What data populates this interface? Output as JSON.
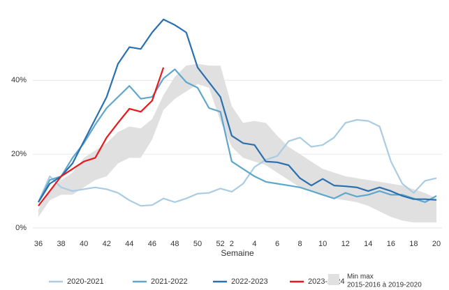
{
  "chart_data": {
    "type": "line",
    "x_label": "Semaine",
    "categories": [
      "36",
      null,
      "38",
      null,
      "40",
      null,
      "42",
      null,
      "44",
      null,
      "46",
      null,
      "48",
      null,
      "50",
      null,
      "52",
      "2",
      null,
      "4",
      null,
      "6",
      null,
      "8",
      null,
      "10",
      null,
      "12",
      null,
      "14",
      null,
      "16",
      null,
      "18",
      null,
      "20"
    ],
    "ylim": [
      -2,
      58
    ],
    "yticks": [
      {
        "value": 0,
        "label": "0%"
      },
      {
        "value": 20,
        "label": "20%"
      },
      {
        "value": 40,
        "label": "40%"
      }
    ],
    "grid": true,
    "band": {
      "name": "Min max",
      "period": "2015-2016 à 2019-2020",
      "color": "#e0e0e0",
      "high": [
        5,
        10,
        13,
        15,
        19,
        21,
        23,
        26,
        27.5,
        27,
        29.5,
        36,
        41,
        44,
        44.5,
        44,
        44,
        33,
        28.5,
        29,
        28.5,
        25,
        22,
        20,
        18,
        16,
        15,
        14,
        13.5,
        13,
        12.5,
        12,
        11.5,
        10.5,
        9.5,
        8
      ],
      "low": [
        3,
        7.5,
        9,
        9,
        11,
        13,
        14,
        17.5,
        19,
        19,
        24,
        32,
        35,
        37,
        39,
        38,
        29,
        22,
        19,
        18,
        17,
        15,
        13,
        11,
        10,
        9,
        8,
        7.5,
        7,
        6,
        4.5,
        3,
        2,
        1.5,
        1.5,
        1.5
      ]
    },
    "series": [
      {
        "name": "2020-2021",
        "color": "#a9cce3",
        "values": [
          7,
          14,
          11,
          10,
          10.5,
          11,
          10.5,
          9.5,
          7.5,
          6,
          6.2,
          8,
          7,
          8,
          9.3,
          9.5,
          10.7,
          9.8,
          12,
          16.5,
          18.5,
          19.5,
          23.5,
          24.5,
          22,
          22.5,
          24.5,
          28.5,
          29.3,
          29,
          27.5,
          18,
          12,
          9.5,
          12.8,
          13.5
        ]
      },
      {
        "name": "2021-2022",
        "color": "#5ea7cc",
        "values": [
          7,
          13,
          14,
          19,
          23,
          28,
          32.5,
          35.5,
          38.5,
          35,
          35.5,
          40.5,
          43,
          39.5,
          38,
          32.5,
          31.5,
          18,
          16,
          14,
          12.5,
          12,
          11.5,
          11,
          10,
          9,
          8,
          9.5,
          8.5,
          9,
          10,
          9,
          9,
          8,
          7,
          8.7
        ]
      },
      {
        "name": "2022-2023",
        "color": "#2a6fae",
        "values": [
          7,
          12,
          14,
          17.5,
          23.5,
          29.5,
          35.5,
          44.5,
          49,
          48.5,
          53,
          56.5,
          55,
          53,
          43.5,
          39.5,
          35.5,
          25,
          23,
          22.5,
          18,
          17.8,
          17,
          13.5,
          11.5,
          13.3,
          11.5,
          11.3,
          11,
          10,
          11,
          10,
          8.7,
          7.8,
          7.8,
          7.6
        ]
      },
      {
        "name": "2023-2024",
        "color": "#e8191c",
        "values": [
          6,
          10,
          14,
          16,
          18,
          19,
          24.5,
          28.5,
          32.3,
          31.5,
          34.5,
          43.5,
          null,
          null,
          null,
          null,
          null,
          null,
          null,
          null,
          null,
          null,
          null,
          null,
          null,
          null,
          null,
          null,
          null,
          null,
          null,
          null,
          null,
          null,
          null,
          null
        ]
      }
    ]
  }
}
